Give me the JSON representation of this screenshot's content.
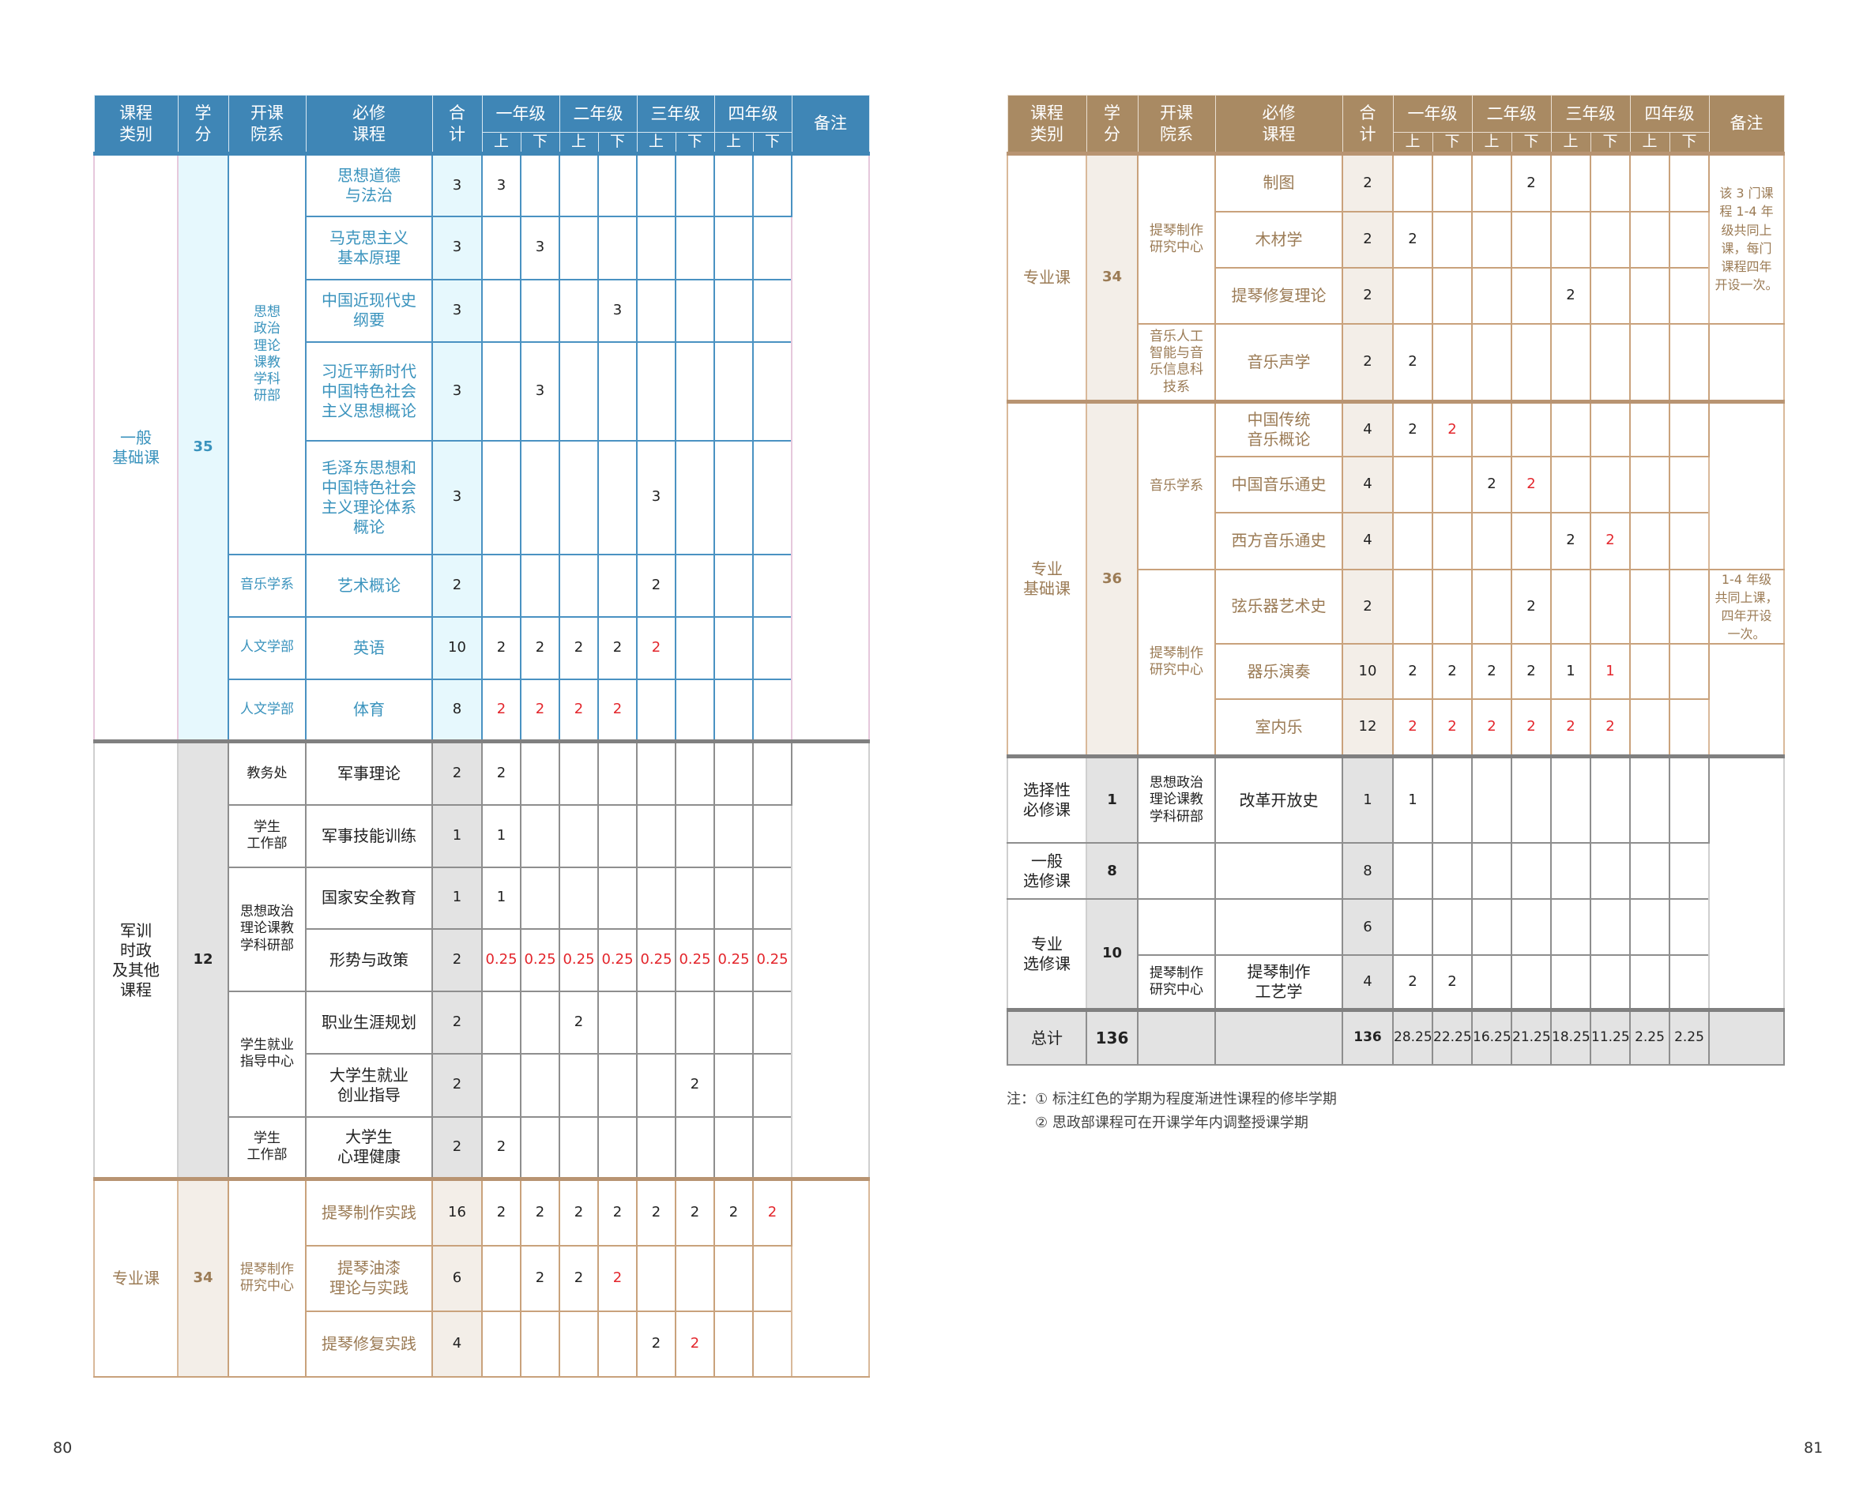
{
  "left_page": {
    "page_number": "80",
    "theme": "blue",
    "header": {
      "category": "课程\n类别",
      "credits": "学\n分",
      "department": "开课\n院系",
      "course": "必修\n课程",
      "total": "合\n计",
      "years": [
        "一年级",
        "二年级",
        "三年级",
        "四年级"
      ],
      "terms": [
        "上",
        "下"
      ],
      "remark": "备注"
    },
    "blocks": [
      {
        "theme": "blue",
        "sections": [
          {
            "category": "一般\n基础课",
            "credits": "35",
            "depts": [
              {
                "name": "思想\n政治\n理论\n课教\n学科\n研部",
                "rows": [
                  {
                    "course": "思想道德\n与法治",
                    "total": "3",
                    "sem": [
                      "3",
                      "",
                      "",
                      "",
                      "",
                      "",
                      "",
                      ""
                    ],
                    "red": []
                  },
                  {
                    "course": "马克思主义\n基本原理",
                    "total": "3",
                    "sem": [
                      "",
                      "3",
                      "",
                      "",
                      "",
                      "",
                      "",
                      ""
                    ],
                    "red": []
                  },
                  {
                    "course": "中国近现代史\n纲要",
                    "total": "3",
                    "sem": [
                      "",
                      "",
                      "",
                      "3",
                      "",
                      "",
                      "",
                      ""
                    ],
                    "red": []
                  },
                  {
                    "course": "习近平新时代\n中国特色社会\n主义思想概论",
                    "total": "3",
                    "sem": [
                      "",
                      "3",
                      "",
                      "",
                      "",
                      "",
                      "",
                      ""
                    ],
                    "red": []
                  },
                  {
                    "course": "毛泽东思想和\n中国特色社会\n主义理论体系\n概论",
                    "total": "3",
                    "sem": [
                      "",
                      "",
                      "",
                      "",
                      "3",
                      "",
                      "",
                      ""
                    ],
                    "red": []
                  }
                ]
              },
              {
                "name": "音乐学系",
                "rows": [
                  {
                    "course": "艺术概论",
                    "total": "2",
                    "sem": [
                      "",
                      "",
                      "",
                      "",
                      "2",
                      "",
                      "",
                      ""
                    ],
                    "red": []
                  }
                ]
              },
              {
                "name": "人文学部",
                "rows": [
                  {
                    "course": "英语",
                    "total": "10",
                    "sem": [
                      "2",
                      "2",
                      "2",
                      "2",
                      "2",
                      "",
                      "",
                      ""
                    ],
                    "red": [
                      4
                    ]
                  }
                ]
              },
              {
                "name": "人文学部",
                "rows": [
                  {
                    "course": "体育",
                    "total": "8",
                    "sem": [
                      "2",
                      "2",
                      "2",
                      "2",
                      "",
                      "",
                      "",
                      ""
                    ],
                    "red": [
                      0,
                      1,
                      2,
                      3
                    ]
                  }
                ]
              }
            ]
          }
        ],
        "remarks": [
          {
            "text": "",
            "rows": 8
          }
        ]
      },
      {
        "theme": "gray",
        "sections": [
          {
            "category": "军训\n时政\n及其他\n课程",
            "credits": "12",
            "depts": [
              {
                "name": "教务处",
                "rows": [
                  {
                    "course": "军事理论",
                    "total": "2",
                    "sem": [
                      "2",
                      "",
                      "",
                      "",
                      "",
                      "",
                      "",
                      ""
                    ],
                    "red": []
                  }
                ]
              },
              {
                "name": "学生\n工作部",
                "rows": [
                  {
                    "course": "军事技能训练",
                    "total": "1",
                    "sem": [
                      "1",
                      "",
                      "",
                      "",
                      "",
                      "",
                      "",
                      ""
                    ],
                    "red": []
                  }
                ]
              },
              {
                "name": "思想政治\n理论课教\n学科研部",
                "rows": [
                  {
                    "course": "国家安全教育",
                    "total": "1",
                    "sem": [
                      "1",
                      "",
                      "",
                      "",
                      "",
                      "",
                      "",
                      ""
                    ],
                    "red": []
                  },
                  {
                    "course": "形势与政策",
                    "total": "2",
                    "sem": [
                      "0.25",
                      "0.25",
                      "0.25",
                      "0.25",
                      "0.25",
                      "0.25",
                      "0.25",
                      "0.25"
                    ],
                    "red": [
                      0,
                      1,
                      2,
                      3,
                      4,
                      5,
                      6,
                      7
                    ]
                  }
                ]
              },
              {
                "name": "学生就业\n指导中心",
                "rows": [
                  {
                    "course": "职业生涯规划",
                    "total": "2",
                    "sem": [
                      "",
                      "",
                      "2",
                      "",
                      "",
                      "",
                      "",
                      ""
                    ],
                    "red": []
                  },
                  {
                    "course": "大学生就业\n创业指导",
                    "total": "2",
                    "sem": [
                      "",
                      "",
                      "",
                      "",
                      "",
                      "2",
                      "",
                      ""
                    ],
                    "red": []
                  }
                ]
              },
              {
                "name": "学生\n工作部",
                "rows": [
                  {
                    "course": "大学生\n心理健康",
                    "total": "2",
                    "sem": [
                      "2",
                      "",
                      "",
                      "",
                      "",
                      "",
                      "",
                      ""
                    ],
                    "red": []
                  }
                ]
              }
            ]
          }
        ],
        "remarks": [
          {
            "text": "",
            "rows": 7
          }
        ]
      },
      {
        "theme": "brown",
        "sections": [
          {
            "category": "专业课",
            "credits": "34",
            "depts": [
              {
                "name": "提琴制作\n研究中心",
                "rows": [
                  {
                    "course": "提琴制作实践",
                    "total": "16",
                    "sem": [
                      "2",
                      "2",
                      "2",
                      "2",
                      "2",
                      "2",
                      "2",
                      "2"
                    ],
                    "red": [
                      7
                    ]
                  },
                  {
                    "course": "提琴油漆\n理论与实践",
                    "total": "6",
                    "sem": [
                      "",
                      "2",
                      "2",
                      "2",
                      "",
                      "",
                      "",
                      ""
                    ],
                    "red": [
                      3
                    ]
                  },
                  {
                    "course": "提琴修复实践",
                    "total": "4",
                    "sem": [
                      "",
                      "",
                      "",
                      "",
                      "2",
                      "2",
                      "",
                      ""
                    ],
                    "red": [
                      5
                    ]
                  }
                ]
              }
            ]
          }
        ],
        "remarks": [
          {
            "text": "",
            "rows": 3
          }
        ]
      }
    ]
  },
  "right_page": {
    "page_number": "81",
    "theme": "brown",
    "header": {
      "category": "课程\n类别",
      "credits": "学\n分",
      "department": "开课\n院系",
      "course": "必修\n课程",
      "total": "合\n计",
      "years": [
        "一年级",
        "二年级",
        "三年级",
        "四年级"
      ],
      "terms": [
        "上",
        "下"
      ],
      "remark": "备注"
    },
    "blocks": [
      {
        "theme": "brown",
        "sections": [
          {
            "category": "专业课",
            "credits": "34",
            "depts": [
              {
                "name": "提琴制作\n研究中心",
                "rows": [
                  {
                    "course": "制图",
                    "total": "2",
                    "sem": [
                      "",
                      "",
                      "",
                      "2",
                      "",
                      "",
                      "",
                      ""
                    ],
                    "red": []
                  },
                  {
                    "course": "木材学",
                    "total": "2",
                    "sem": [
                      "2",
                      "",
                      "",
                      "",
                      "",
                      "",
                      "",
                      ""
                    ],
                    "red": []
                  },
                  {
                    "course": "提琴修复理论",
                    "total": "2",
                    "sem": [
                      "",
                      "",
                      "",
                      "",
                      "2",
                      "",
                      "",
                      ""
                    ],
                    "red": []
                  }
                ]
              },
              {
                "name": "音乐人工\n智能与音\n乐信息科\n技系",
                "rows": [
                  {
                    "course": "音乐声学",
                    "total": "2",
                    "sem": [
                      "2",
                      "",
                      "",
                      "",
                      "",
                      "",
                      "",
                      ""
                    ],
                    "red": []
                  }
                ]
              }
            ]
          }
        ],
        "remarks": [
          {
            "text": "该 3 门课\n程 1-4 年\n级共同上\n课，每门\n课程四年\n开设一次。",
            "rows": 3
          },
          {
            "text": "",
            "rows": 1
          }
        ]
      },
      {
        "theme": "brown",
        "sections": [
          {
            "category": "专业\n基础课",
            "credits": "36",
            "depts": [
              {
                "name": "音乐学系",
                "rows": [
                  {
                    "course": "中国传统\n音乐概论",
                    "total": "4",
                    "sem": [
                      "2",
                      "2",
                      "",
                      "",
                      "",
                      "",
                      "",
                      ""
                    ],
                    "red": [
                      1
                    ]
                  },
                  {
                    "course": "中国音乐通史",
                    "total": "4",
                    "sem": [
                      "",
                      "",
                      "2",
                      "2",
                      "",
                      "",
                      "",
                      ""
                    ],
                    "red": [
                      3
                    ]
                  },
                  {
                    "course": "西方音乐通史",
                    "total": "4",
                    "sem": [
                      "",
                      "",
                      "",
                      "",
                      "2",
                      "2",
                      "",
                      ""
                    ],
                    "red": [
                      5
                    ]
                  }
                ]
              },
              {
                "name": "提琴制作\n研究中心",
                "rows": [
                  {
                    "course": "弦乐器艺术史",
                    "total": "2",
                    "sem": [
                      "",
                      "",
                      "",
                      "2",
                      "",
                      "",
                      "",
                      ""
                    ],
                    "red": []
                  },
                  {
                    "course": "器乐演奏",
                    "total": "10",
                    "sem": [
                      "2",
                      "2",
                      "2",
                      "2",
                      "1",
                      "1",
                      "",
                      ""
                    ],
                    "red": [
                      5
                    ]
                  },
                  {
                    "course": "室内乐",
                    "total": "12",
                    "sem": [
                      "2",
                      "2",
                      "2",
                      "2",
                      "2",
                      "2",
                      "",
                      ""
                    ],
                    "red": [
                      0,
                      1,
                      2,
                      3,
                      4,
                      5
                    ]
                  }
                ]
              }
            ]
          }
        ],
        "remarks": [
          {
            "text": "",
            "rows": 3
          },
          {
            "text": "1-4 年级\n共同上课，\n四年开设\n一次。",
            "rows": 1
          },
          {
            "text": "",
            "rows": 2
          }
        ]
      },
      {
        "theme": "gray",
        "sections": [
          {
            "category": "选择性\n必修课",
            "credits": "1",
            "depts": [
              {
                "name": "思想政治\n理论课教\n学科研部",
                "rows": [
                  {
                    "course": "改革开放史",
                    "total": "1",
                    "sem": [
                      "1",
                      "",
                      "",
                      "",
                      "",
                      "",
                      "",
                      ""
                    ],
                    "red": []
                  }
                ]
              }
            ]
          },
          {
            "category": "一般\n选修课",
            "credits": "8",
            "depts": [
              {
                "name": "",
                "rows": [
                  {
                    "course": "",
                    "total": "8",
                    "sem": [
                      "",
                      "",
                      "",
                      "",
                      "",
                      "",
                      "",
                      ""
                    ],
                    "red": []
                  }
                ]
              }
            ]
          },
          {
            "category": "专业\n选修课",
            "credits": "10",
            "depts": [
              {
                "name": "",
                "rows": [
                  {
                    "course": "",
                    "total": "6",
                    "sem": [
                      "",
                      "",
                      "",
                      "",
                      "",
                      "",
                      "",
                      ""
                    ],
                    "red": []
                  }
                ]
              },
              {
                "name": "提琴制作\n研究中心",
                "rows": [
                  {
                    "course": "提琴制作\n工艺学",
                    "total": "4",
                    "sem": [
                      "2",
                      "2",
                      "",
                      "",
                      "",
                      "",
                      "",
                      ""
                    ],
                    "red": []
                  }
                ]
              }
            ]
          }
        ],
        "remarks": [
          {
            "text": "",
            "rows": 4
          }
        ]
      }
    ],
    "total_row": {
      "label": "总计",
      "credits": "136",
      "total": "136",
      "sem": [
        "28.25",
        "22.25",
        "16.25",
        "21.25",
        "18.25",
        "11.25",
        "2.25",
        "2.25"
      ]
    },
    "notes": [
      "注：① 标注红色的学期为程度渐进性课程的修毕学期",
      "② 思政部课程可在开课学年内调整授课学期"
    ]
  },
  "colors": {
    "blue_header": "#3f86b6",
    "brown_header": "#a98a63",
    "gray_fill": "#e3e3e3",
    "final_term_red": "#e3262c"
  }
}
